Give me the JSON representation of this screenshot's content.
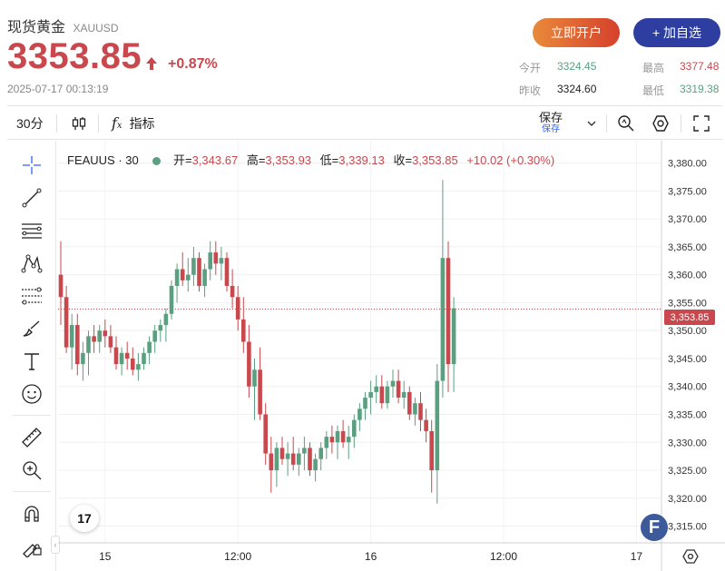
{
  "header": {
    "name": "现货黄金",
    "symbol": "XAUUSD",
    "price": "3353.85",
    "change_pct": "+0.87%",
    "timestamp": "2025-07-17 00:13:19",
    "open_account_label": "立即开户",
    "watchlist_label": "+ 加自选",
    "stats": {
      "today_open_label": "今开",
      "today_open": "3324.45",
      "high_label": "最高",
      "high": "3377.48",
      "prev_close_label": "昨收",
      "prev_close": "3324.60",
      "low_label": "最低",
      "low": "3319.38"
    },
    "colors": {
      "up": "#c9484d",
      "down": "#5b9f81",
      "brand": "#2d3ea0"
    }
  },
  "toolbar": {
    "interval": "30分",
    "indicators_label": "指标",
    "save_label": "保存",
    "save_sub": "保存"
  },
  "legend": {
    "symbol": "FEAUUS · 30",
    "open_label": "开=",
    "open": "3,343.67",
    "high_label": "高=",
    "high": "3,353.93",
    "low_label": "低=",
    "low": "3,339.13",
    "close_label": "收=",
    "close": "3,353.85",
    "change": "+10.02 (+0.30%)"
  },
  "tv_logo": "17",
  "badge": "F",
  "chart_data": {
    "type": "candlestick",
    "interval": "30",
    "y_axis": {
      "range": [
        3312,
        3384
      ],
      "ticks": [
        "3,380.00",
        "3,375.00",
        "3,370.00",
        "3,365.00",
        "3,360.00",
        "3,355.00",
        "3,350.00",
        "3,345.00",
        "3,340.00",
        "3,335.00",
        "3,330.00",
        "3,325.00",
        "3,320.00",
        "3,315.00"
      ]
    },
    "x_axis": {
      "ticks": [
        "15",
        "12:00",
        "16",
        "12:00",
        "17"
      ],
      "tick_index": [
        8,
        32,
        56,
        80,
        104
      ]
    },
    "last_price_label": "3,353.85",
    "last_price": 3353.85,
    "candles": [
      [
        3360.0,
        3366.0,
        3351.0,
        3356.0
      ],
      [
        3356.0,
        3358.0,
        3346.0,
        3347.0
      ],
      [
        3347.0,
        3353.0,
        3343.0,
        3351.0
      ],
      [
        3351.0,
        3353.0,
        3342.0,
        3344.0
      ],
      [
        3344.0,
        3348.0,
        3341.0,
        3346.0
      ],
      [
        3346.0,
        3350.0,
        3342.0,
        3349.0
      ],
      [
        3349.0,
        3351.0,
        3346.0,
        3348.0
      ],
      [
        3348.0,
        3351.0,
        3346.0,
        3350.0
      ],
      [
        3350.0,
        3352.0,
        3347.0,
        3349.0
      ],
      [
        3349.0,
        3351.0,
        3346.0,
        3347.0
      ],
      [
        3347.0,
        3349.0,
        3343.0,
        3344.0
      ],
      [
        3344.0,
        3347.0,
        3342.0,
        3346.0
      ],
      [
        3346.0,
        3348.0,
        3343.0,
        3345.0
      ],
      [
        3345.0,
        3347.0,
        3342.0,
        3343.0
      ],
      [
        3343.0,
        3346.0,
        3341.0,
        3344.0
      ],
      [
        3344.0,
        3347.0,
        3343.0,
        3346.0
      ],
      [
        3346.0,
        3349.0,
        3344.0,
        3348.0
      ],
      [
        3348.0,
        3351.0,
        3346.0,
        3350.0
      ],
      [
        3350.0,
        3352.0,
        3348.0,
        3351.0
      ],
      [
        3351.0,
        3354.0,
        3348.0,
        3353.0
      ],
      [
        3353.0,
        3359.0,
        3352.0,
        3358.0
      ],
      [
        3358.0,
        3362.0,
        3355.0,
        3361.0
      ],
      [
        3361.0,
        3364.0,
        3358.0,
        3359.0
      ],
      [
        3359.0,
        3363.0,
        3357.0,
        3360.0
      ],
      [
        3360.0,
        3365.0,
        3358.0,
        3363.0
      ],
      [
        3363.0,
        3364.0,
        3357.0,
        3358.0
      ],
      [
        3358.0,
        3362.0,
        3356.0,
        3361.0
      ],
      [
        3361.0,
        3366.0,
        3359.0,
        3364.0
      ],
      [
        3364.0,
        3366.0,
        3360.0,
        3362.0
      ],
      [
        3362.0,
        3365.0,
        3359.0,
        3363.0
      ],
      [
        3363.0,
        3364.0,
        3357.0,
        3358.0
      ],
      [
        3358.0,
        3361.0,
        3354.0,
        3356.0
      ],
      [
        3356.0,
        3358.0,
        3350.0,
        3352.0
      ],
      [
        3352.0,
        3356.0,
        3346.0,
        3348.0
      ],
      [
        3348.0,
        3351.0,
        3338.0,
        3340.0
      ],
      [
        3340.0,
        3345.0,
        3334.0,
        3343.0
      ],
      [
        3343.0,
        3347.0,
        3334.0,
        3335.0
      ],
      [
        3335.0,
        3337.0,
        3326.0,
        3328.0
      ],
      [
        3328.0,
        3331.0,
        3321.0,
        3325.0
      ],
      [
        3325.0,
        3330.0,
        3322.0,
        3329.0
      ],
      [
        3329.0,
        3331.0,
        3326.0,
        3327.0
      ],
      [
        3327.0,
        3330.0,
        3324.0,
        3328.0
      ],
      [
        3328.0,
        3331.0,
        3325.0,
        3326.0
      ],
      [
        3326.0,
        3329.0,
        3324.0,
        3328.0
      ],
      [
        3328.0,
        3331.0,
        3325.0,
        3329.0
      ],
      [
        3329.0,
        3330.0,
        3324.0,
        3325.0
      ],
      [
        3325.0,
        3328.0,
        3323.0,
        3327.0
      ],
      [
        3327.0,
        3330.0,
        3325.0,
        3329.0
      ],
      [
        3329.0,
        3332.0,
        3327.0,
        3331.0
      ],
      [
        3331.0,
        3333.0,
        3328.0,
        3330.0
      ],
      [
        3330.0,
        3333.0,
        3327.0,
        3332.0
      ],
      [
        3332.0,
        3334.0,
        3329.0,
        3330.0
      ],
      [
        3330.0,
        3333.0,
        3327.0,
        3331.0
      ],
      [
        3331.0,
        3335.0,
        3329.0,
        3334.0
      ],
      [
        3334.0,
        3337.0,
        3332.0,
        3336.0
      ],
      [
        3336.0,
        3339.0,
        3334.0,
        3338.0
      ],
      [
        3338.0,
        3341.0,
        3335.0,
        3339.0
      ],
      [
        3339.0,
        3342.0,
        3337.0,
        3340.0
      ],
      [
        3340.0,
        3342.0,
        3336.0,
        3337.0
      ],
      [
        3337.0,
        3341.0,
        3336.0,
        3340.0
      ],
      [
        3340.0,
        3343.0,
        3338.0,
        3341.0
      ],
      [
        3341.0,
        3343.0,
        3337.0,
        3338.0
      ],
      [
        3338.0,
        3341.0,
        3336.0,
        3339.0
      ],
      [
        3339.0,
        3340.0,
        3334.0,
        3335.0
      ],
      [
        3335.0,
        3338.0,
        3333.0,
        3337.0
      ],
      [
        3337.0,
        3339.0,
        3332.0,
        3334.0
      ],
      [
        3334.0,
        3336.0,
        3330.0,
        3332.0
      ],
      [
        3332.0,
        3334.0,
        3321.0,
        3325.0
      ],
      [
        3325.0,
        3344.0,
        3319.0,
        3341.0
      ],
      [
        3341.0,
        3377.0,
        3338.0,
        3363.0
      ],
      [
        3363.0,
        3366.0,
        3339.0,
        3344.0
      ],
      [
        3344.0,
        3356.0,
        3339.0,
        3354.0
      ]
    ]
  }
}
